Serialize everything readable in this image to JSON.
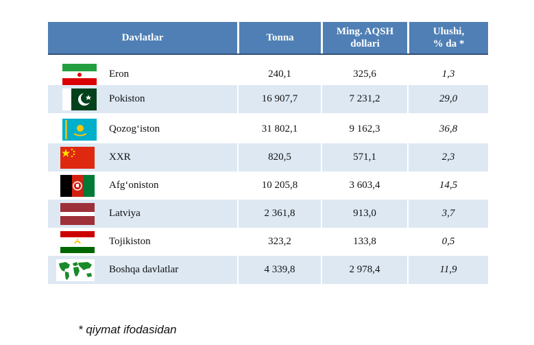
{
  "table": {
    "headers": {
      "country": "Davlatlar",
      "tonna": "Tonna",
      "ming_line1": "Ming. AQSH",
      "ming_line2": "dollari",
      "share_line1": "Ulushi,",
      "share_line2": "% da *"
    },
    "rows": [
      {
        "country": "Eron",
        "flag": "iran-flag-icon",
        "tonna": "240,1",
        "ming": "325,6",
        "share": "1,3"
      },
      {
        "country": "Pokiston",
        "flag": "pakistan-flag-icon",
        "tonna": "16 907,7",
        "ming": "7 231,2",
        "share": "29,0"
      },
      {
        "country": "Qozog‘iston",
        "flag": "kazakhstan-flag-icon",
        "tonna": "31 802,1",
        "ming": "9 162,3",
        "share": "36,8"
      },
      {
        "country": "XXR",
        "flag": "china-flag-icon",
        "tonna": "820,5",
        "ming": "571,1",
        "share": "2,3"
      },
      {
        "country": "Afg‘oniston",
        "flag": "afghanistan-flag-icon",
        "tonna": "10 205,8",
        "ming": "3 603,4",
        "share": "14,5"
      },
      {
        "country": "Latviya",
        "flag": "latvia-flag-icon",
        "tonna": "2 361,8",
        "ming": "913,0",
        "share": "3,7"
      },
      {
        "country": "Tojikiston",
        "flag": "tajikistan-flag-icon",
        "tonna": "323,2",
        "ming": "133,8",
        "share": "0,5"
      },
      {
        "country": "Boshqa davlatlar",
        "flag": "world-map-icon",
        "tonna": "4 339,8",
        "ming": "2 978,4",
        "share": "11,9"
      }
    ]
  },
  "colors": {
    "header_bg": "#4f7fb4",
    "row_alt_bg": "#dde8f3"
  },
  "footnote": "* qiymat ifodasidan"
}
